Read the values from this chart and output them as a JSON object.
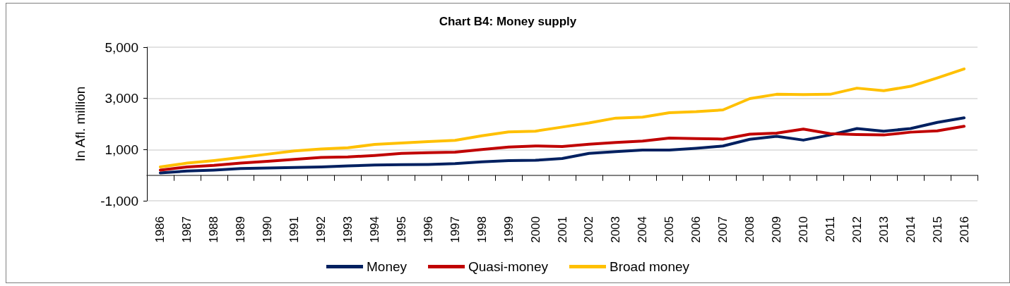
{
  "chart_data": {
    "type": "line",
    "title": "Chart B4: Money supply",
    "ylabel": "In Afl. million",
    "categories": [
      "1986",
      "1987",
      "1988",
      "1989",
      "1990",
      "1991",
      "1992",
      "1993",
      "1994",
      "1995",
      "1996",
      "1997",
      "1998",
      "1999",
      "2000",
      "2001",
      "2002",
      "2003",
      "2004",
      "2005",
      "2006",
      "2007",
      "2008",
      "2009",
      "2010",
      "2011",
      "2012",
      "2013",
      "2014",
      "2015",
      "2016"
    ],
    "series": [
      {
        "name": "Money",
        "color": "#002060",
        "values": [
          90,
          160,
          200,
          260,
          280,
          300,
          320,
          360,
          400,
          410,
          420,
          450,
          520,
          570,
          580,
          650,
          850,
          920,
          980,
          980,
          1050,
          1140,
          1400,
          1520,
          1370,
          1570,
          1820,
          1720,
          1820,
          2060,
          2240
        ]
      },
      {
        "name": "Quasi-money",
        "color": "#c00000",
        "values": [
          200,
          320,
          380,
          470,
          540,
          620,
          690,
          710,
          770,
          850,
          880,
          900,
          1000,
          1100,
          1140,
          1120,
          1210,
          1280,
          1330,
          1450,
          1430,
          1410,
          1600,
          1640,
          1800,
          1620,
          1590,
          1570,
          1680,
          1730,
          1910
        ]
      },
      {
        "name": "Broad money",
        "color": "#ffc000",
        "values": [
          320,
          470,
          570,
          690,
          820,
          950,
          1020,
          1070,
          1200,
          1260,
          1310,
          1360,
          1540,
          1690,
          1720,
          1880,
          2040,
          2230,
          2270,
          2440,
          2480,
          2550,
          2990,
          3160,
          3150,
          3160,
          3400,
          3300,
          3470,
          3800,
          4150
        ]
      }
    ],
    "ylim": [
      -1000,
      5000
    ],
    "yticks": [
      {
        "value": -1000,
        "label": "-1,000"
      },
      {
        "value": 1000,
        "label": "1,000"
      },
      {
        "value": 3000,
        "label": "3,000"
      },
      {
        "value": 5000,
        "label": "5,000"
      }
    ],
    "grid": "y",
    "legend": "bottom",
    "marker": "none",
    "line_style": "solid"
  }
}
